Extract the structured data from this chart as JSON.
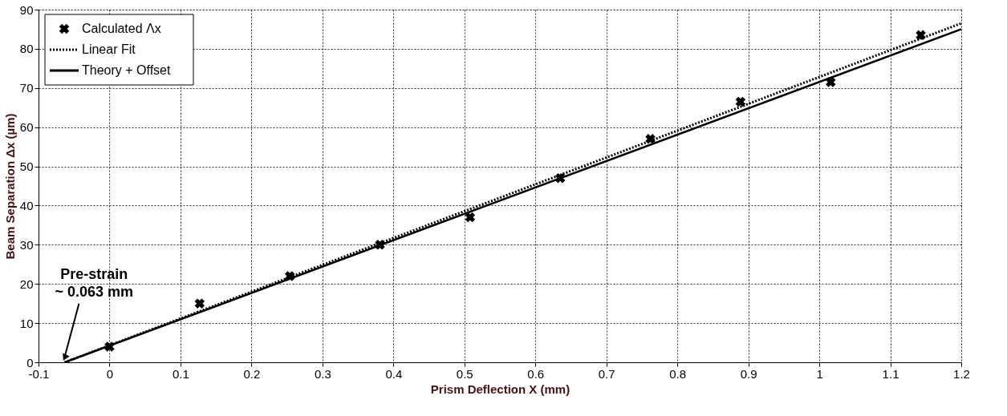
{
  "chart_data": {
    "type": "scatter",
    "xlabel": "Prism Deflection X (mm)",
    "ylabel": "Beam Separation Δx (µm)",
    "xlim": [
      -0.1,
      1.2
    ],
    "xticks": [
      -0.1,
      0,
      0.1,
      0.2,
      0.3,
      0.4,
      0.5,
      0.6,
      0.7,
      0.8,
      0.9,
      1,
      1.1,
      1.2
    ],
    "ylim": [
      0,
      90
    ],
    "yticks": [
      0,
      10,
      20,
      30,
      40,
      50,
      60,
      70,
      80,
      90
    ],
    "grid": true,
    "legend": "top left",
    "series": [
      {
        "name": "Calculated Λx",
        "marker": "cross",
        "color": "#000000",
        "x": [
          0,
          0.127,
          0.254,
          0.381,
          0.508,
          0.635,
          0.762,
          0.889,
          1.016,
          1.143
        ],
        "values": [
          4,
          15,
          22,
          30,
          37,
          47,
          57,
          66.5,
          71.5,
          83.5
        ]
      },
      {
        "name": "Linear Fit",
        "type": "line",
        "line_style": "dotted",
        "color": "#000000",
        "x": [
          -0.063,
          1.2
        ],
        "values": [
          0,
          86.5
        ]
      },
      {
        "name": "Theory + Offset",
        "type": "line",
        "line_style": "solid",
        "color": "#000000",
        "x": [
          -0.063,
          1.2
        ],
        "values": [
          0,
          85
        ]
      }
    ],
    "annotations": [
      {
        "text": "Pre-strain\n~ 0.063 mm",
        "x": -0.063,
        "y": 0
      }
    ]
  }
}
